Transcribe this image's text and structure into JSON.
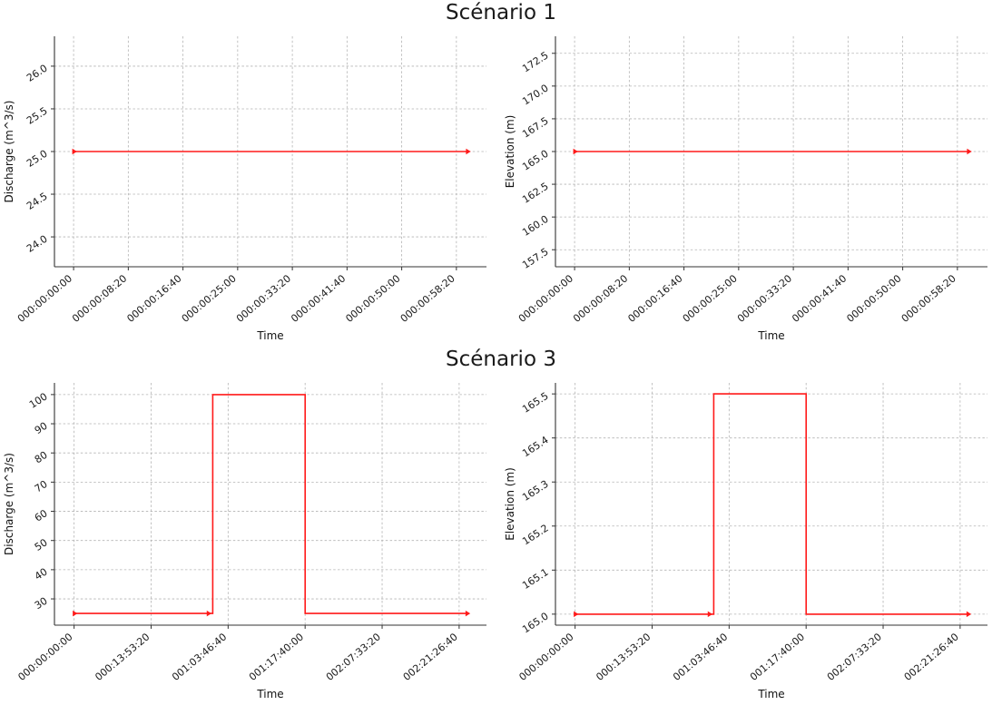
{
  "sections": {
    "scenario1_title": "Scénario 1",
    "scenario3_title": "Scénario 3"
  },
  "chart_data": [
    {
      "id": "scenario1-discharge",
      "type": "line",
      "xlabel": "Time",
      "ylabel": "Discharge (m^3/s)",
      "line_color": "#ff1a1a",
      "grid": true,
      "xlim": [
        -175,
        3775
      ],
      "ylim": [
        23.65,
        26.35
      ],
      "xticks": [
        {
          "v": 0,
          "label": "000:00:00:00"
        },
        {
          "v": 500,
          "label": "000:00:08:20"
        },
        {
          "v": 1000,
          "label": "000:00:16:40"
        },
        {
          "v": 1500,
          "label": "000:00:25:00"
        },
        {
          "v": 2000,
          "label": "000:00:33:20"
        },
        {
          "v": 2500,
          "label": "000:00:41:40"
        },
        {
          "v": 3000,
          "label": "000:00:50:00"
        },
        {
          "v": 3500,
          "label": "000:00:58:20"
        }
      ],
      "yticks": [
        {
          "v": 24.0,
          "label": "24.0"
        },
        {
          "v": 24.5,
          "label": "24.5"
        },
        {
          "v": 25.0,
          "label": "25.0"
        },
        {
          "v": 25.5,
          "label": "25.5"
        },
        {
          "v": 26.0,
          "label": "26.0"
        }
      ],
      "series": [
        {
          "name": "Discharge",
          "x": [
            0,
            3600
          ],
          "y": [
            25,
            25
          ],
          "marker_points": [
            [
              0,
              25
            ],
            [
              3600,
              25
            ]
          ]
        }
      ]
    },
    {
      "id": "scenario1-elevation",
      "type": "line",
      "xlabel": "Time",
      "ylabel": "Elevation (m)",
      "line_color": "#ff1a1a",
      "grid": true,
      "xlim": [
        -175,
        3775
      ],
      "ylim": [
        156.2,
        173.8
      ],
      "xticks": [
        {
          "v": 0,
          "label": "000:00:00:00"
        },
        {
          "v": 500,
          "label": "000:00:08:20"
        },
        {
          "v": 1000,
          "label": "000:00:16:40"
        },
        {
          "v": 1500,
          "label": "000:00:25:00"
        },
        {
          "v": 2000,
          "label": "000:00:33:20"
        },
        {
          "v": 2500,
          "label": "000:00:41:40"
        },
        {
          "v": 3000,
          "label": "000:00:50:00"
        },
        {
          "v": 3500,
          "label": "000:00:58:20"
        }
      ],
      "yticks": [
        {
          "v": 157.5,
          "label": "157.5"
        },
        {
          "v": 160.0,
          "label": "160.0"
        },
        {
          "v": 162.5,
          "label": "162.5"
        },
        {
          "v": 165.0,
          "label": "165.0"
        },
        {
          "v": 167.5,
          "label": "167.5"
        },
        {
          "v": 170.0,
          "label": "170.0"
        },
        {
          "v": 172.5,
          "label": "172.5"
        }
      ],
      "series": [
        {
          "name": "Elevation",
          "x": [
            0,
            3600
          ],
          "y": [
            165,
            165
          ],
          "marker_points": [
            [
              0,
              165
            ],
            [
              3600,
              165
            ]
          ]
        }
      ]
    },
    {
      "id": "scenario3-discharge",
      "type": "line",
      "xlabel": "Time",
      "ylabel": "Discharge (m^3/s)",
      "line_color": "#ff1a1a",
      "grid": true,
      "xlim": [
        -12750,
        267750
      ],
      "ylim": [
        21,
        104
      ],
      "xticks": [
        {
          "v": 0,
          "label": "000:00:00:00"
        },
        {
          "v": 50000,
          "label": "000:13:53:20"
        },
        {
          "v": 100000,
          "label": "001:03:46:40"
        },
        {
          "v": 150000,
          "label": "001:17:40:00"
        },
        {
          "v": 200000,
          "label": "002:07:33:20"
        },
        {
          "v": 250000,
          "label": "002:21:26:40"
        }
      ],
      "yticks": [
        {
          "v": 30,
          "label": "30"
        },
        {
          "v": 40,
          "label": "40"
        },
        {
          "v": 50,
          "label": "50"
        },
        {
          "v": 60,
          "label": "60"
        },
        {
          "v": 70,
          "label": "70"
        },
        {
          "v": 80,
          "label": "80"
        },
        {
          "v": 90,
          "label": "90"
        },
        {
          "v": 100,
          "label": "100"
        }
      ],
      "series": [
        {
          "name": "Discharge",
          "x": [
            0,
            90000,
            90000,
            150000,
            150000,
            255000
          ],
          "y": [
            25,
            25,
            100,
            100,
            25,
            25
          ],
          "marker_points": [
            [
              0,
              25
            ],
            [
              87000,
              25
            ],
            [
              255000,
              25
            ]
          ]
        }
      ]
    },
    {
      "id": "scenario3-elevation",
      "type": "line",
      "xlabel": "Time",
      "ylabel": "Elevation (m)",
      "line_color": "#ff1a1a",
      "grid": true,
      "xlim": [
        -12750,
        267750
      ],
      "ylim": [
        164.975,
        165.525
      ],
      "xticks": [
        {
          "v": 0,
          "label": "000:00:00:00"
        },
        {
          "v": 50000,
          "label": "000:13:53:20"
        },
        {
          "v": 100000,
          "label": "001:03:46:40"
        },
        {
          "v": 150000,
          "label": "001:17:40:00"
        },
        {
          "v": 200000,
          "label": "002:07:33:20"
        },
        {
          "v": 250000,
          "label": "002:21:26:40"
        }
      ],
      "yticks": [
        {
          "v": 165.0,
          "label": "165.0"
        },
        {
          "v": 165.1,
          "label": "165.1"
        },
        {
          "v": 165.2,
          "label": "165.2"
        },
        {
          "v": 165.3,
          "label": "165.3"
        },
        {
          "v": 165.4,
          "label": "165.4"
        },
        {
          "v": 165.5,
          "label": "165.5"
        }
      ],
      "series": [
        {
          "name": "Elevation",
          "x": [
            0,
            90000,
            90000,
            150000,
            150000,
            255000
          ],
          "y": [
            165.0,
            165.0,
            165.5,
            165.5,
            165.0,
            165.0
          ],
          "marker_points": [
            [
              0,
              165.0
            ],
            [
              87000,
              165.0
            ],
            [
              255000,
              165.0
            ]
          ]
        }
      ]
    }
  ]
}
